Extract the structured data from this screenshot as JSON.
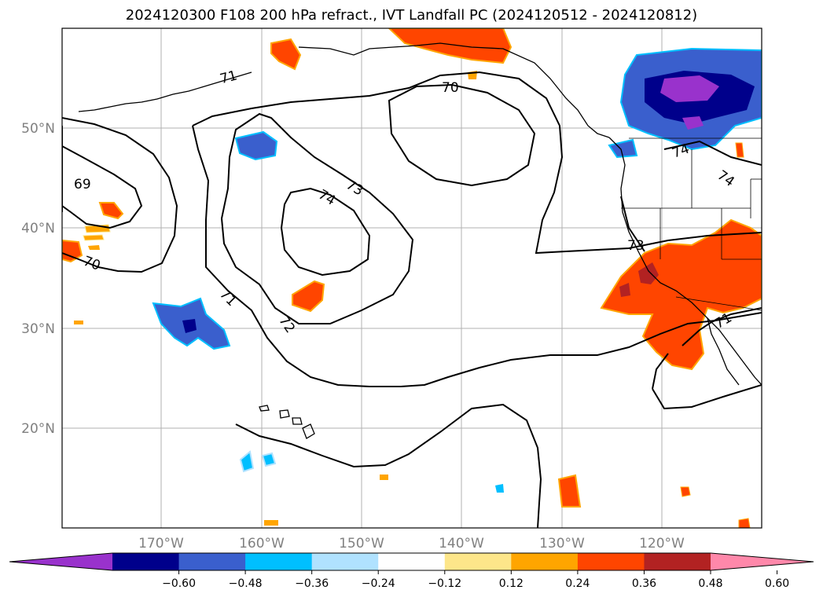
{
  "title": "2024120300 F108 200 hPa refract., IVT Landfall PC (2024120512 - 2024120812)",
  "map": {
    "lat_labels": [
      "50°N",
      "40°N",
      "30°N",
      "20°N"
    ],
    "lon_labels": [
      "170°W",
      "160°W",
      "150°W",
      "140°W",
      "130°W",
      "120°W"
    ],
    "contour_labels": [
      "69",
      "70",
      "70",
      "71",
      "71",
      "71",
      "72",
      "73",
      "73",
      "74",
      "74",
      "74"
    ]
  },
  "colorbar": {
    "tick_labels": [
      "−0.60",
      "−0.48",
      "−0.36",
      "−0.24",
      "−0.12",
      "0.12",
      "0.24",
      "0.36",
      "0.48",
      "0.60"
    ],
    "colors": [
      "#9932cc",
      "#00008b",
      "#3a5fcd",
      "#00bfff",
      "#b0e2ff",
      "#ffffff",
      "#fde68a",
      "#ffa500",
      "#ff4500",
      "#b22222",
      "#ff88aa"
    ]
  },
  "colors": {
    "contour": "#000000",
    "grid": "#b0b0b0",
    "label": "#808080"
  }
}
